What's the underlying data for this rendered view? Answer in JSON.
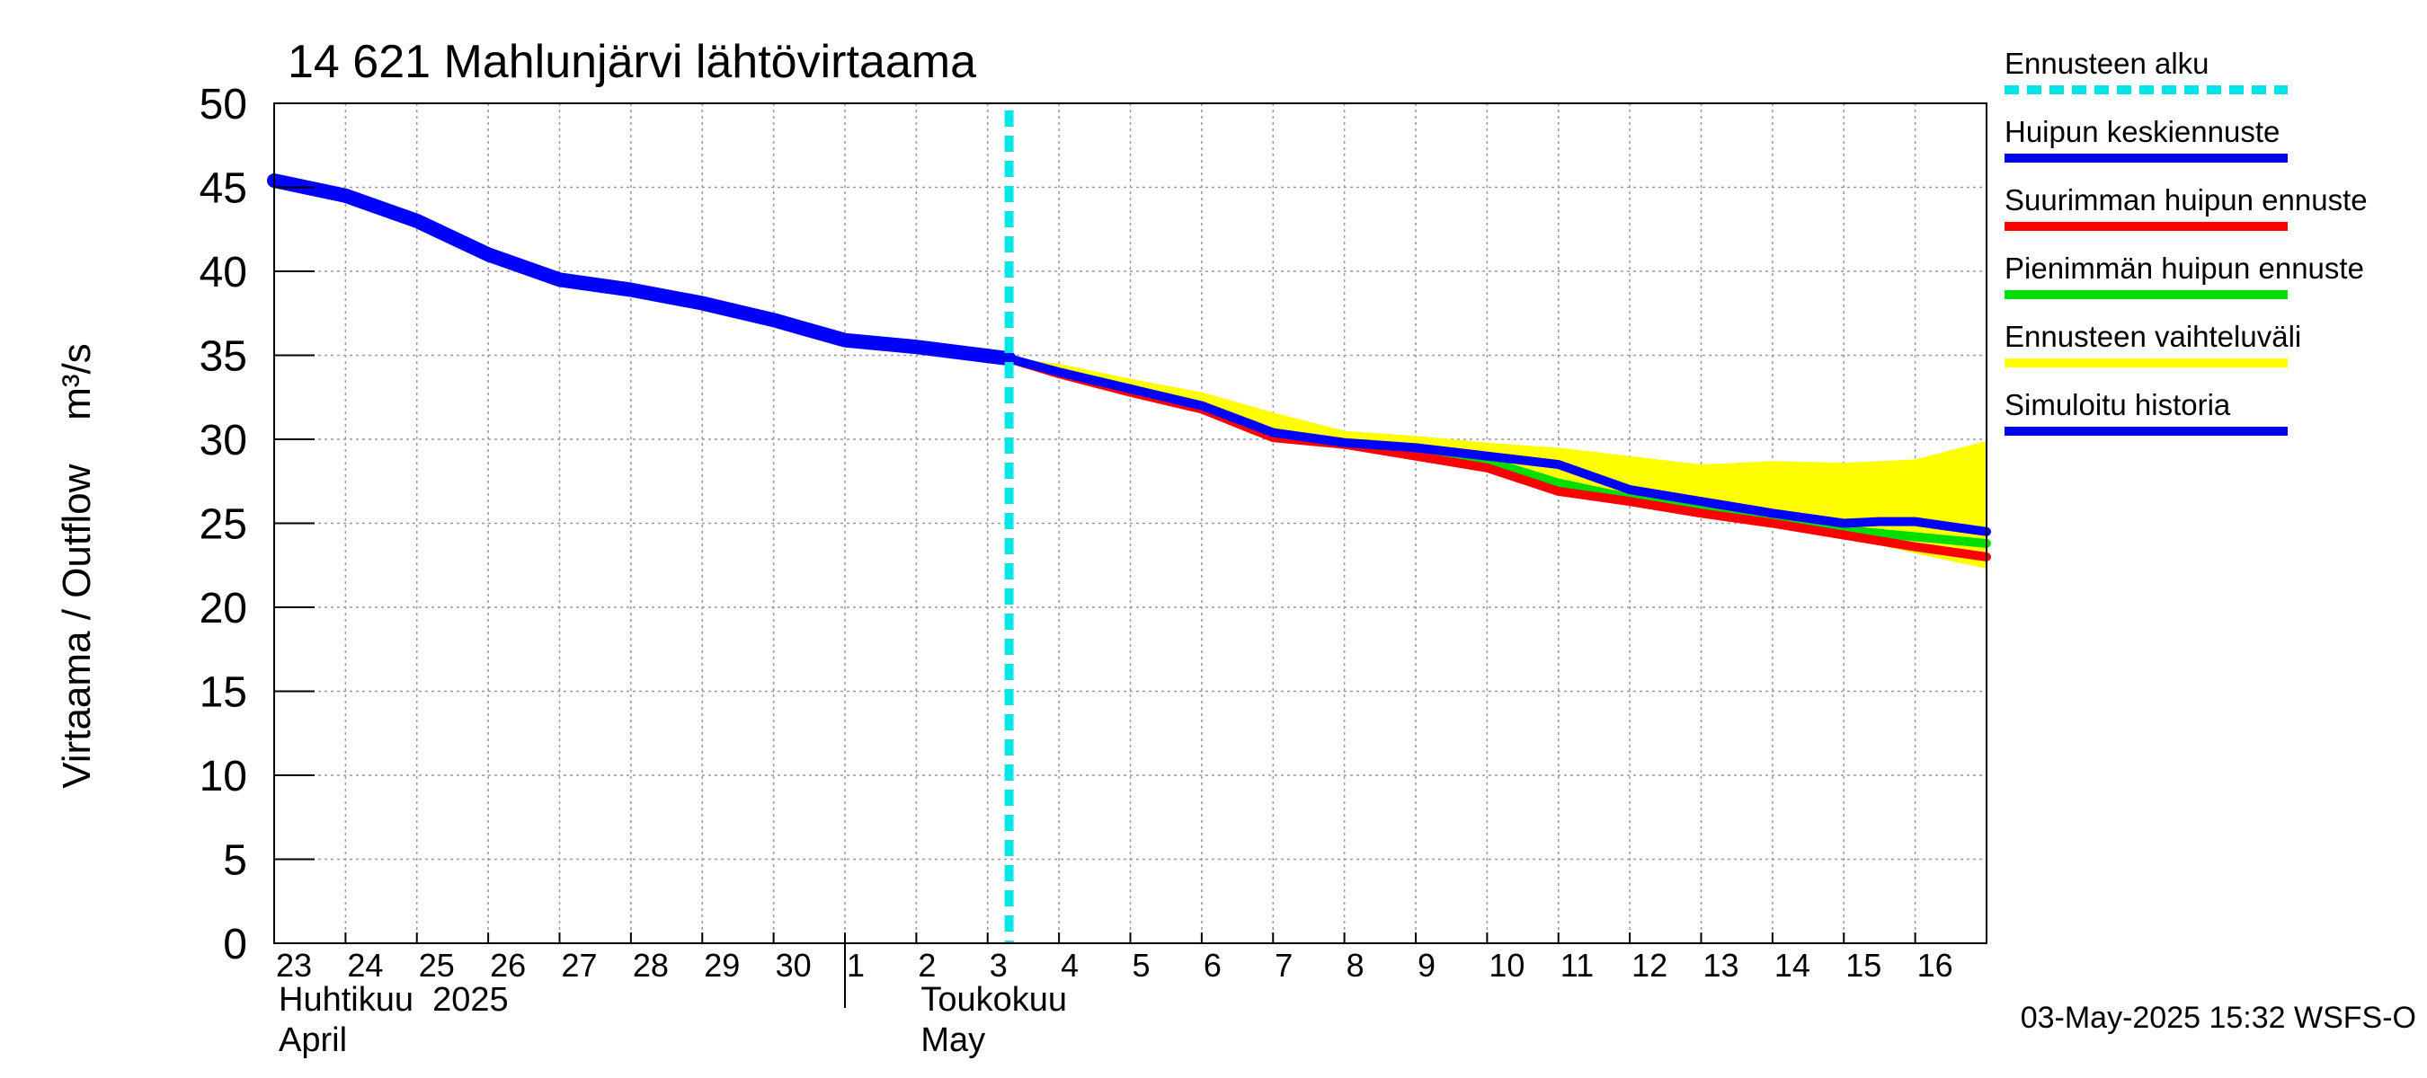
{
  "chart_data": {
    "type": "line",
    "title": "14 621 Mahlunjärvi lähtövirtaama",
    "ylabel": "Virtaama / Outflow    m³/s",
    "ylim": [
      0,
      50
    ],
    "yticks": [
      0,
      5,
      10,
      15,
      20,
      25,
      30,
      35,
      40,
      45,
      50
    ],
    "x_range": [
      0,
      24
    ],
    "day_labels": [
      "23",
      "24",
      "25",
      "26",
      "27",
      "28",
      "29",
      "30",
      "1",
      "2",
      "3",
      "4",
      "5",
      "6",
      "7",
      "8",
      "9",
      "10",
      "11",
      "12",
      "13",
      "14",
      "15",
      "16"
    ],
    "month_labels": [
      {
        "fi": "Huhtikuu  2025",
        "en": "April",
        "x": 0
      },
      {
        "fi": "Toukokuu",
        "en": "May",
        "x": 9
      }
    ],
    "month_boundary": 8,
    "forecast_start": 10.3,
    "footer": "03-May-2025 15:32 WSFS-O",
    "colors": {
      "forecast_start": "#00e5e5",
      "mean": "#0000ff",
      "max": "#ff0000",
      "min": "#00dd00",
      "range": "#ffff00",
      "history": "#0000ff",
      "grid": "#999999"
    },
    "legend": [
      {
        "label": "Ennusteen alku",
        "key": "forecast_start",
        "style": "dashed"
      },
      {
        "label": "Huipun keskiennuste",
        "key": "mean",
        "style": "solid"
      },
      {
        "label": "Suurimman huipun ennuste",
        "key": "max",
        "style": "solid"
      },
      {
        "label": "Pienimmän huipun ennuste",
        "key": "min",
        "style": "solid"
      },
      {
        "label": "Ennusteen vaihteluväli",
        "key": "range",
        "style": "solid"
      },
      {
        "label": "Simuloitu historia",
        "key": "history",
        "style": "solid"
      }
    ],
    "series": [
      {
        "name": "Simuloitu historia",
        "key": "history",
        "x": [
          0,
          1,
          2,
          3,
          4,
          5,
          6,
          7,
          8,
          9,
          10.3
        ],
        "y": [
          45.4,
          44.5,
          43.0,
          41.0,
          39.5,
          38.9,
          38.1,
          37.1,
          35.9,
          35.5,
          34.8
        ]
      },
      {
        "name": "Huipun keskiennuste",
        "key": "mean",
        "x": [
          10.3,
          11,
          12,
          13,
          14,
          15,
          16,
          17,
          18,
          19,
          20,
          21,
          22,
          22.5,
          23,
          24
        ],
        "y": [
          34.8,
          34.0,
          33.0,
          32.0,
          30.4,
          29.8,
          29.5,
          29.0,
          28.5,
          27.0,
          26.3,
          25.6,
          25.0,
          25.1,
          25.1,
          24.5
        ]
      },
      {
        "name": "Suurimman huipun ennuste",
        "key": "max",
        "x": [
          10.3,
          11,
          12,
          13,
          14,
          15,
          16,
          17,
          18,
          19,
          20,
          21,
          22,
          23,
          24
        ],
        "y": [
          34.8,
          33.9,
          32.8,
          31.8,
          30.1,
          29.7,
          29.0,
          28.3,
          26.9,
          26.3,
          25.6,
          25.0,
          24.3,
          23.6,
          23.0
        ]
      },
      {
        "name": "Pienimmän huipun ennuste",
        "key": "min",
        "x": [
          10.3,
          11,
          12,
          13,
          14,
          15,
          16,
          17,
          18,
          19,
          20,
          21,
          22,
          23,
          24
        ],
        "y": [
          34.8,
          34.0,
          33.0,
          32.0,
          30.3,
          29.7,
          29.3,
          28.7,
          27.4,
          26.5,
          25.9,
          25.2,
          24.6,
          24.2,
          23.8
        ]
      }
    ],
    "range_band": {
      "x": [
        10.3,
        11,
        12,
        13,
        14,
        15,
        16,
        17,
        18,
        19,
        20,
        21,
        22,
        23,
        24
      ],
      "upper": [
        34.8,
        34.5,
        33.6,
        32.8,
        31.6,
        30.5,
        30.2,
        29.8,
        29.5,
        29.0,
        28.5,
        28.7,
        28.6,
        28.8,
        29.9
      ],
      "lower": [
        34.8,
        33.9,
        32.8,
        31.8,
        30.1,
        29.7,
        29.0,
        28.3,
        26.9,
        26.3,
        25.6,
        25.0,
        24.2,
        23.2,
        22.3
      ]
    }
  }
}
